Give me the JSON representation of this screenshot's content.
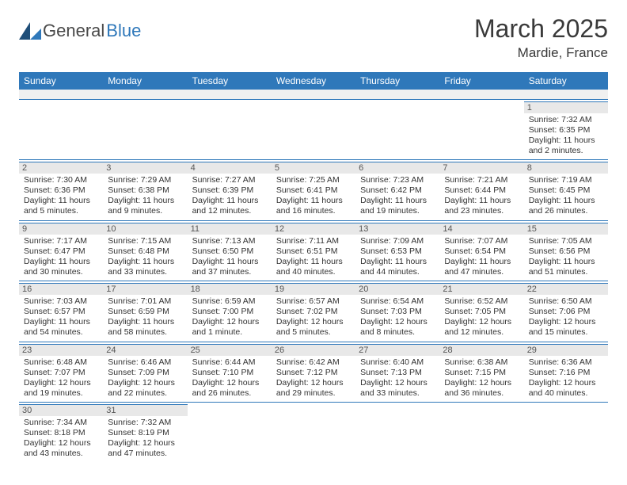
{
  "brand": {
    "a": "General",
    "b": "Blue"
  },
  "title": "March 2025",
  "location": "Mardie, France",
  "header_bg": "#2f78ba",
  "header_fg": "#ffffff",
  "daynum_bg": "#e8e8e8",
  "border_color": "#2f78ba",
  "weekdays": [
    "Sunday",
    "Monday",
    "Tuesday",
    "Wednesday",
    "Thursday",
    "Friday",
    "Saturday"
  ],
  "weeks": [
    [
      null,
      null,
      null,
      null,
      null,
      null,
      {
        "n": "1",
        "sunrise": "7:32 AM",
        "sunset": "6:35 PM",
        "daylight": "11 hours and 2 minutes."
      }
    ],
    [
      {
        "n": "2",
        "sunrise": "7:30 AM",
        "sunset": "6:36 PM",
        "daylight": "11 hours and 5 minutes."
      },
      {
        "n": "3",
        "sunrise": "7:29 AM",
        "sunset": "6:38 PM",
        "daylight": "11 hours and 9 minutes."
      },
      {
        "n": "4",
        "sunrise": "7:27 AM",
        "sunset": "6:39 PM",
        "daylight": "11 hours and 12 minutes."
      },
      {
        "n": "5",
        "sunrise": "7:25 AM",
        "sunset": "6:41 PM",
        "daylight": "11 hours and 16 minutes."
      },
      {
        "n": "6",
        "sunrise": "7:23 AM",
        "sunset": "6:42 PM",
        "daylight": "11 hours and 19 minutes."
      },
      {
        "n": "7",
        "sunrise": "7:21 AM",
        "sunset": "6:44 PM",
        "daylight": "11 hours and 23 minutes."
      },
      {
        "n": "8",
        "sunrise": "7:19 AM",
        "sunset": "6:45 PM",
        "daylight": "11 hours and 26 minutes."
      }
    ],
    [
      {
        "n": "9",
        "sunrise": "7:17 AM",
        "sunset": "6:47 PM",
        "daylight": "11 hours and 30 minutes."
      },
      {
        "n": "10",
        "sunrise": "7:15 AM",
        "sunset": "6:48 PM",
        "daylight": "11 hours and 33 minutes."
      },
      {
        "n": "11",
        "sunrise": "7:13 AM",
        "sunset": "6:50 PM",
        "daylight": "11 hours and 37 minutes."
      },
      {
        "n": "12",
        "sunrise": "7:11 AM",
        "sunset": "6:51 PM",
        "daylight": "11 hours and 40 minutes."
      },
      {
        "n": "13",
        "sunrise": "7:09 AM",
        "sunset": "6:53 PM",
        "daylight": "11 hours and 44 minutes."
      },
      {
        "n": "14",
        "sunrise": "7:07 AM",
        "sunset": "6:54 PM",
        "daylight": "11 hours and 47 minutes."
      },
      {
        "n": "15",
        "sunrise": "7:05 AM",
        "sunset": "6:56 PM",
        "daylight": "11 hours and 51 minutes."
      }
    ],
    [
      {
        "n": "16",
        "sunrise": "7:03 AM",
        "sunset": "6:57 PM",
        "daylight": "11 hours and 54 minutes."
      },
      {
        "n": "17",
        "sunrise": "7:01 AM",
        "sunset": "6:59 PM",
        "daylight": "11 hours and 58 minutes."
      },
      {
        "n": "18",
        "sunrise": "6:59 AM",
        "sunset": "7:00 PM",
        "daylight": "12 hours and 1 minute."
      },
      {
        "n": "19",
        "sunrise": "6:57 AM",
        "sunset": "7:02 PM",
        "daylight": "12 hours and 5 minutes."
      },
      {
        "n": "20",
        "sunrise": "6:54 AM",
        "sunset": "7:03 PM",
        "daylight": "12 hours and 8 minutes."
      },
      {
        "n": "21",
        "sunrise": "6:52 AM",
        "sunset": "7:05 PM",
        "daylight": "12 hours and 12 minutes."
      },
      {
        "n": "22",
        "sunrise": "6:50 AM",
        "sunset": "7:06 PM",
        "daylight": "12 hours and 15 minutes."
      }
    ],
    [
      {
        "n": "23",
        "sunrise": "6:48 AM",
        "sunset": "7:07 PM",
        "daylight": "12 hours and 19 minutes."
      },
      {
        "n": "24",
        "sunrise": "6:46 AM",
        "sunset": "7:09 PM",
        "daylight": "12 hours and 22 minutes."
      },
      {
        "n": "25",
        "sunrise": "6:44 AM",
        "sunset": "7:10 PM",
        "daylight": "12 hours and 26 minutes."
      },
      {
        "n": "26",
        "sunrise": "6:42 AM",
        "sunset": "7:12 PM",
        "daylight": "12 hours and 29 minutes."
      },
      {
        "n": "27",
        "sunrise": "6:40 AM",
        "sunset": "7:13 PM",
        "daylight": "12 hours and 33 minutes."
      },
      {
        "n": "28",
        "sunrise": "6:38 AM",
        "sunset": "7:15 PM",
        "daylight": "12 hours and 36 minutes."
      },
      {
        "n": "29",
        "sunrise": "6:36 AM",
        "sunset": "7:16 PM",
        "daylight": "12 hours and 40 minutes."
      }
    ],
    [
      {
        "n": "30",
        "sunrise": "7:34 AM",
        "sunset": "8:18 PM",
        "daylight": "12 hours and 43 minutes."
      },
      {
        "n": "31",
        "sunrise": "7:32 AM",
        "sunset": "8:19 PM",
        "daylight": "12 hours and 47 minutes."
      },
      null,
      null,
      null,
      null,
      null
    ]
  ],
  "labels": {
    "sunrise": "Sunrise: ",
    "sunset": "Sunset: ",
    "daylight": "Daylight: "
  }
}
